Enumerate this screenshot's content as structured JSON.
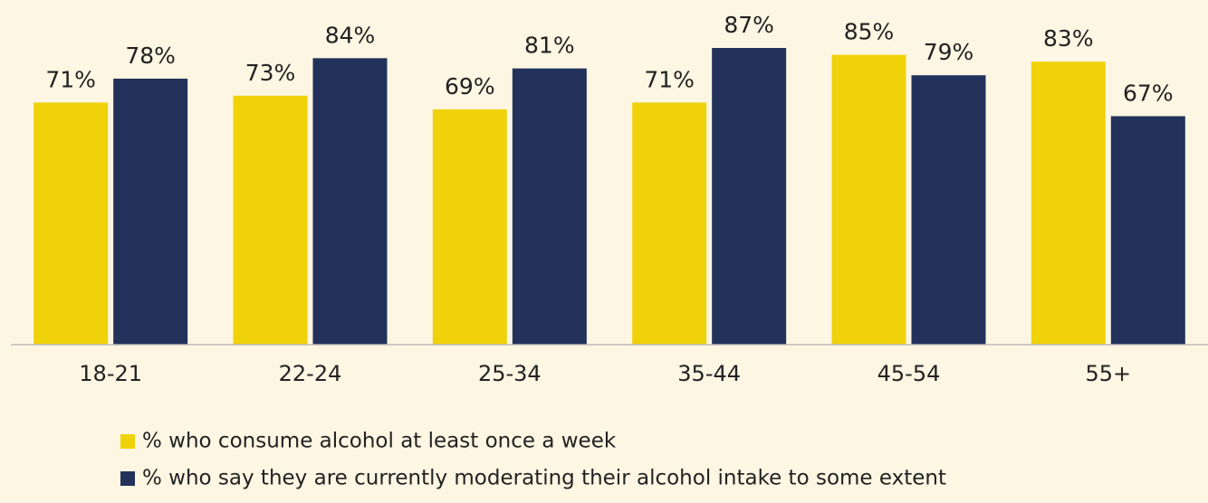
{
  "chart_data": {
    "type": "bar",
    "categories": [
      "18-21",
      "22-24",
      "25-34",
      "35-44",
      "45-54",
      "55+"
    ],
    "series": [
      {
        "name": "% who consume alcohol at least once a week",
        "color": "#f0d20a",
        "values": [
          71,
          73,
          69,
          71,
          85,
          83
        ],
        "value_labels": [
          "71%",
          "73%",
          "69%",
          "71%",
          "85%",
          "83%"
        ]
      },
      {
        "name": "% who say they are currently moderating their alcohol intake to some extent",
        "color": "#22325a",
        "values": [
          78,
          84,
          81,
          87,
          79,
          67
        ],
        "value_labels": [
          "78%",
          "84%",
          "81%",
          "87%",
          "79%",
          "67%"
        ]
      }
    ],
    "ylim": [
      0,
      100
    ]
  }
}
